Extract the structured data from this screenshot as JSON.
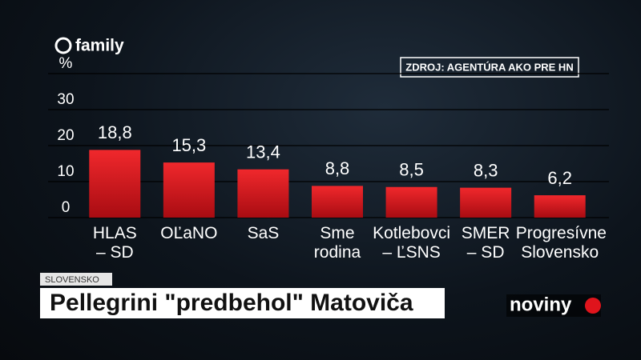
{
  "chart_data": {
    "type": "bar",
    "y_label": "%",
    "categories": [
      "HLAS\n– SD",
      "OĽaNO",
      "SaS",
      "Sme\nrodina",
      "Kotlebovci\n– ĽSNS",
      "SMER\n– SD",
      "Progresívne\nSlovensko"
    ],
    "values": [
      18.8,
      15.3,
      13.4,
      8.8,
      8.5,
      8.3,
      6.2
    ],
    "value_labels": [
      "18,8",
      "15,3",
      "13,4",
      "8,8",
      "8,5",
      "8,3",
      "6,2"
    ],
    "color": "#d4141c",
    "ylim": [
      0,
      40
    ],
    "yticks": [
      0,
      10,
      20,
      30
    ],
    "grid": true,
    "source": "ZDROJ: AGENTÚRA AKO PRE HN"
  },
  "branding": {
    "channel": "family",
    "section": "SLOVENSKO",
    "headline": "Pellegrini \"predbehol\" Matoviča",
    "show": "noviny"
  }
}
